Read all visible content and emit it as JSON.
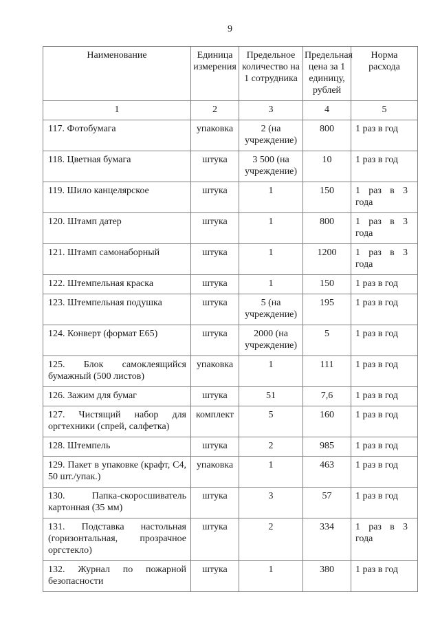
{
  "page": {
    "number": "9"
  },
  "table": {
    "headers": [
      "Наименование",
      "Единица\nизмерения",
      "Предельное\nколичество на\n1 сотрудника",
      "Предельная\nцена за 1\nединицу,\nрублей",
      "Норма\nрасхода"
    ],
    "column_numbers": [
      "1",
      "2",
      "3",
      "4",
      "5"
    ],
    "rows": [
      [
        "117. Фотобумага",
        "упаковка",
        "2 (на учреждение)",
        "800",
        "1 раз в год"
      ],
      [
        "118. Цветная бумага",
        "штука",
        "3 500 (на учреждение)",
        "10",
        "1 раз в год"
      ],
      [
        "119. Шило канцелярское",
        "штука",
        "1",
        "150",
        "1 раз в 3 года"
      ],
      [
        "120. Штамп датер",
        "штука",
        "1",
        "800",
        "1 раз в 3 года"
      ],
      [
        "121. Штамп самонаборный",
        "штука",
        "1",
        "1200",
        "1 раз в 3 года"
      ],
      [
        "122. Штемпельная краска",
        "штука",
        "1",
        "150",
        "1 раз в год"
      ],
      [
        "123. Штемпельная подушка",
        "штука",
        "5 (на учреждение)",
        "195",
        "1 раз в год"
      ],
      [
        "124. Конверт (формат Е65)",
        "штука",
        "2000 (на учреждение)",
        "5",
        "1 раз в год"
      ],
      [
        "125. Блок самоклеящийся бумажный (500 листов)",
        "упаковка",
        "1",
        "111",
        "1 раз в год"
      ],
      [
        "126. Зажим для бумаг",
        "штука",
        "51",
        "7,6",
        "1 раз в год"
      ],
      [
        "127. Чистящий набор для оргтехники (спрей, салфетка)",
        "комплект",
        "5",
        "160",
        "1 раз в год"
      ],
      [
        "128. Штемпель",
        "штука",
        "2",
        "985",
        "1 раз в год"
      ],
      [
        "129. Пакет в упаковке (крафт, С4, 50 шт./упак.)",
        "упаковка",
        "1",
        "463",
        "1 раз в год"
      ],
      [
        "130. Папка-скоросшиватель картонная (35 мм)",
        "штука",
        "3",
        "57",
        "1 раз в год"
      ],
      [
        "131. Подставка настольная (горизонтальная, прозрачное оргстекло)",
        "штука",
        "2",
        "334",
        "1 раз в 3 года"
      ],
      [
        "132. Журнал по пожарной безопасности",
        "штука",
        "1",
        "380",
        "1 раз в год"
      ]
    ]
  },
  "colors": {
    "border": "#7d7d7d",
    "text": "#1c1c1c",
    "background": "#ffffff"
  }
}
